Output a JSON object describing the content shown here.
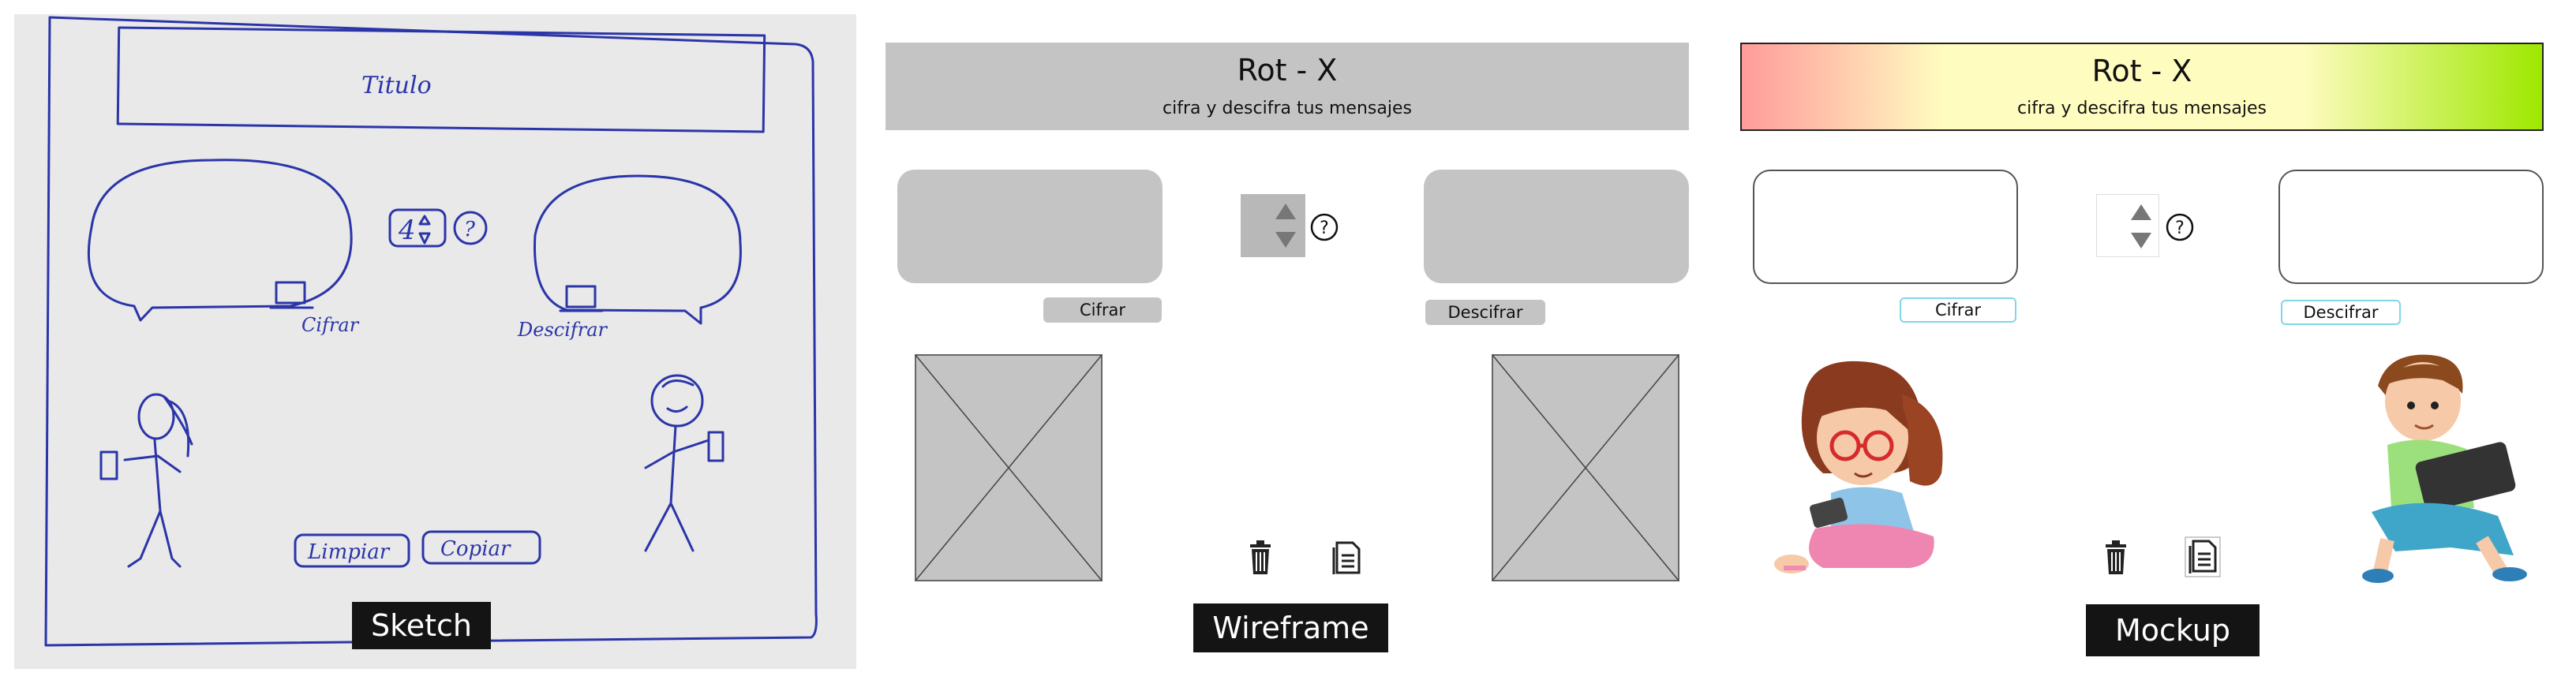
{
  "captions": {
    "sketch": "Sketch",
    "wireframe": "Wireframe",
    "mockup": "Mockup"
  },
  "sketch": {
    "title": "Titulo",
    "step_value": "4",
    "help": "?",
    "encrypt_label": "Cifrar",
    "decrypt_label": "Descifrar",
    "clear_label": "Limpiar",
    "copy_label": "Copiar"
  },
  "wireframe": {
    "title": "Rot - X",
    "subtitle": "cifra y descifra tus mensajes",
    "encrypt_label": "Cifrar",
    "decrypt_label": "Descifrar"
  },
  "mockup": {
    "title": "Rot - X",
    "subtitle": "cifra y descifra tus mensajes",
    "encrypt_label": "Cifrar",
    "decrypt_label": "Descifrar"
  },
  "colors": {
    "pen": "#2b35a8",
    "wire_gray": "#c4c4c4",
    "mock_gradient": [
      "#ff9b9b",
      "#fffcc0",
      "#9ee800"
    ],
    "button_border": "#7fd7e6"
  },
  "icons": [
    "trash-icon",
    "copy-document-icon",
    "help-icon",
    "spinner-arrows-icon"
  ]
}
